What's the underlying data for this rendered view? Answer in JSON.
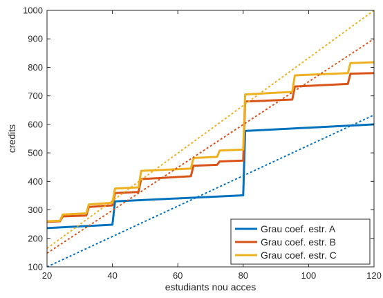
{
  "chart_data": {
    "type": "line",
    "xlabel": "estudiants nou acces",
    "ylabel": "credits",
    "xlim": [
      20,
      120
    ],
    "ylim": [
      100,
      1000
    ],
    "x_ticks": [
      20,
      40,
      60,
      80,
      100,
      120
    ],
    "y_ticks": [
      100,
      200,
      300,
      400,
      500,
      600,
      700,
      800,
      900,
      1000
    ],
    "x_tick_labels": [
      "20",
      "40",
      "60",
      "80",
      "100",
      "120"
    ],
    "y_tick_labels": [
      "100",
      "200",
      "300",
      "400",
      "500",
      "600",
      "700",
      "800",
      "900",
      "1000"
    ],
    "grid": false,
    "legend_position": "bottom-right",
    "series": [
      {
        "name": "Grau coef. estr. A",
        "color": "#0072BD",
        "style": "solid",
        "points": [
          [
            20,
            236
          ],
          [
            40,
            248
          ],
          [
            40.8,
            330
          ],
          [
            80,
            351
          ],
          [
            80.6,
            577
          ],
          [
            120,
            600
          ]
        ]
      },
      {
        "name": "Grau coef. estr. B",
        "color": "#D95319",
        "style": "solid",
        "points": [
          [
            20,
            258
          ],
          [
            24,
            260
          ],
          [
            24.8,
            277
          ],
          [
            32,
            280
          ],
          [
            32.8,
            310
          ],
          [
            40,
            316
          ],
          [
            40.8,
            359
          ],
          [
            48,
            363
          ],
          [
            48.8,
            408
          ],
          [
            64,
            418
          ],
          [
            64.8,
            455
          ],
          [
            72,
            458
          ],
          [
            72.8,
            470
          ],
          [
            80,
            473
          ],
          [
            80.6,
            680
          ],
          [
            95,
            687
          ],
          [
            95.8,
            733
          ],
          [
            112,
            742
          ],
          [
            112.8,
            778
          ],
          [
            120,
            780
          ]
        ]
      },
      {
        "name": "Grau coef. estr. C",
        "color": "#EDB120",
        "style": "solid",
        "points": [
          [
            20,
            260
          ],
          [
            24,
            262
          ],
          [
            24.8,
            284
          ],
          [
            32,
            288
          ],
          [
            32.8,
            319
          ],
          [
            40,
            325
          ],
          [
            40.8,
            375
          ],
          [
            48,
            379
          ],
          [
            48.8,
            437
          ],
          [
            64,
            445
          ],
          [
            64.8,
            482
          ],
          [
            72,
            486
          ],
          [
            72.8,
            508
          ],
          [
            80,
            512
          ],
          [
            80.6,
            705
          ],
          [
            95,
            714
          ],
          [
            95.8,
            772
          ],
          [
            112,
            780
          ],
          [
            112.8,
            815
          ],
          [
            120,
            818
          ]
        ]
      },
      {
        "color": "#0072BD",
        "style": "dashed",
        "points": [
          [
            20,
            100
          ],
          [
            120,
            633
          ]
        ]
      },
      {
        "color": "#D95319",
        "style": "dashed",
        "points": [
          [
            20,
            148
          ],
          [
            120,
            900
          ]
        ]
      },
      {
        "color": "#EDB120",
        "style": "dashed",
        "points": [
          [
            20,
            165
          ],
          [
            120,
            1000
          ]
        ]
      }
    ]
  }
}
